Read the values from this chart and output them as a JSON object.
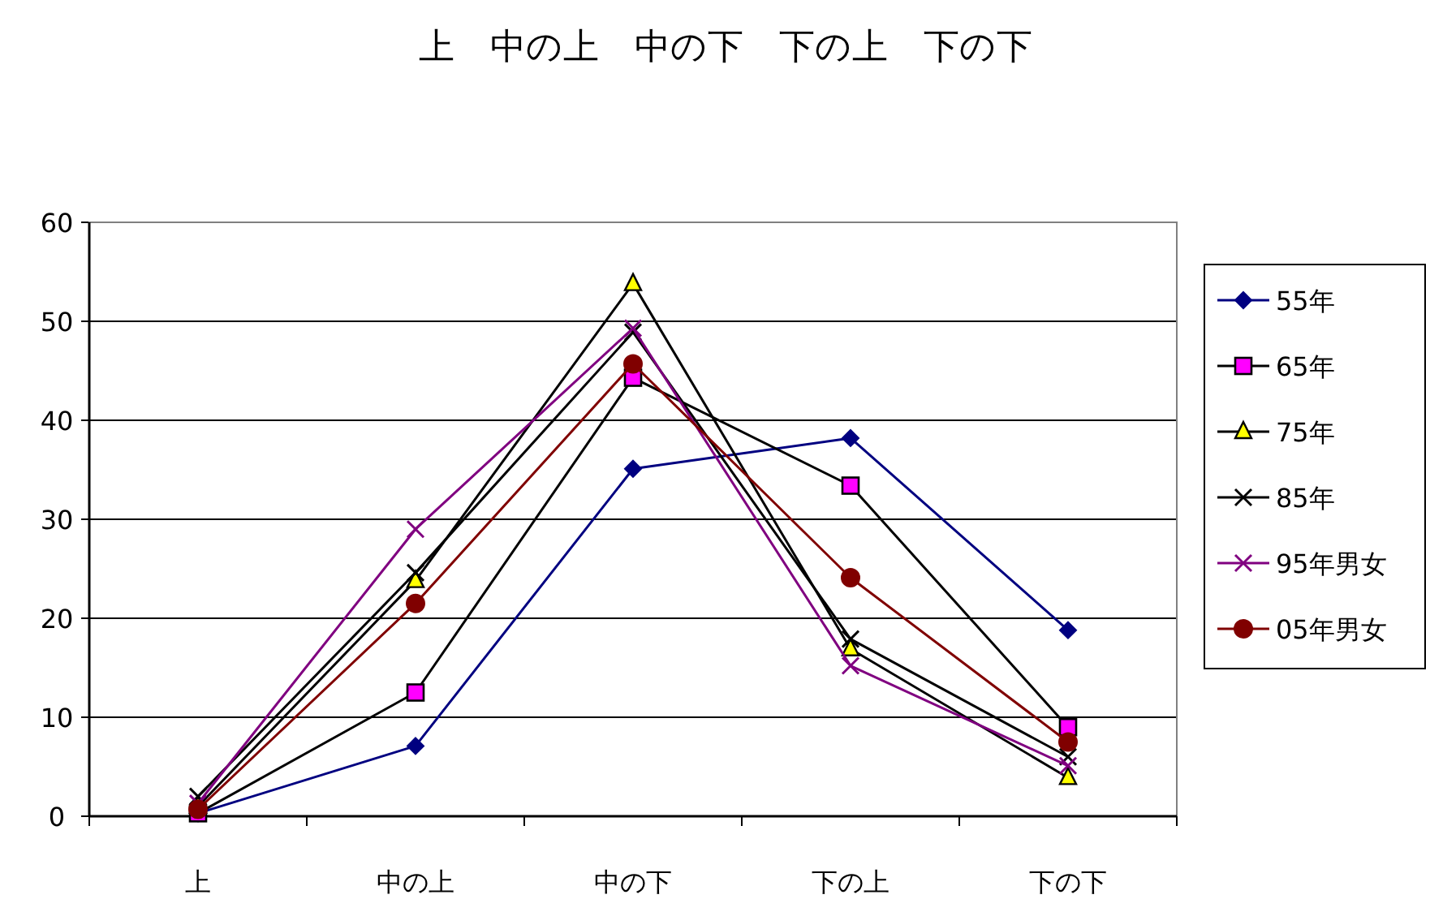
{
  "chart_data": {
    "type": "line",
    "title": "上　中の上　中の下　下の上　下の下",
    "categories": [
      "上",
      "中の上",
      "中の下",
      "下の上",
      "下の下"
    ],
    "series": [
      {
        "name": "55年",
        "color": "#000080",
        "marker": "diamond",
        "colors": [
          "#000080",
          "#000080",
          "#000080",
          "#000080",
          "#000080"
        ],
        "values": [
          0.3,
          7.1,
          35.1,
          38.2,
          18.8
        ]
      },
      {
        "name": "65年",
        "color": "#000000",
        "marker": "square",
        "colors": [
          "#ff00ff",
          "#ff00ff",
          "#ff00ff",
          "#ff00ff",
          "#ff00ff"
        ],
        "values": [
          0.3,
          12.5,
          44.3,
          33.4,
          9.0
        ]
      },
      {
        "name": "75年",
        "color": "#000000",
        "marker": "triangle",
        "colors": [
          "#ffff00",
          "#ffff00",
          "#ffff00",
          "#ffff00",
          "#ffff00"
        ],
        "values": [
          1.0,
          23.8,
          53.8,
          16.9,
          3.9
        ]
      },
      {
        "name": "85年",
        "color": "#000000",
        "marker": "cross",
        "colors": [
          "#000000",
          "#000000",
          "#000000",
          "#000000",
          "#000000"
        ],
        "values": [
          2.0,
          24.6,
          48.9,
          17.9,
          6.0
        ]
      },
      {
        "name": "95年男女",
        "color": "#800080",
        "marker": "cross",
        "colors": [
          "#800080",
          "#800080",
          "#800080",
          "#800080",
          "#800080"
        ],
        "values": [
          1.3,
          29.0,
          49.3,
          15.2,
          5.1
        ]
      },
      {
        "name": "05年男女",
        "color": "#800000",
        "marker": "circle",
        "colors": [
          "#800000",
          "#800000",
          "#800000",
          "#800000",
          "#800000"
        ],
        "values": [
          0.7,
          21.5,
          45.7,
          24.1,
          7.5
        ]
      }
    ],
    "ylim": [
      0,
      60
    ],
    "yticks": [
      0,
      10,
      20,
      30,
      40,
      50,
      60
    ],
    "grid": "y",
    "legend": "right",
    "line_style": "solid"
  }
}
